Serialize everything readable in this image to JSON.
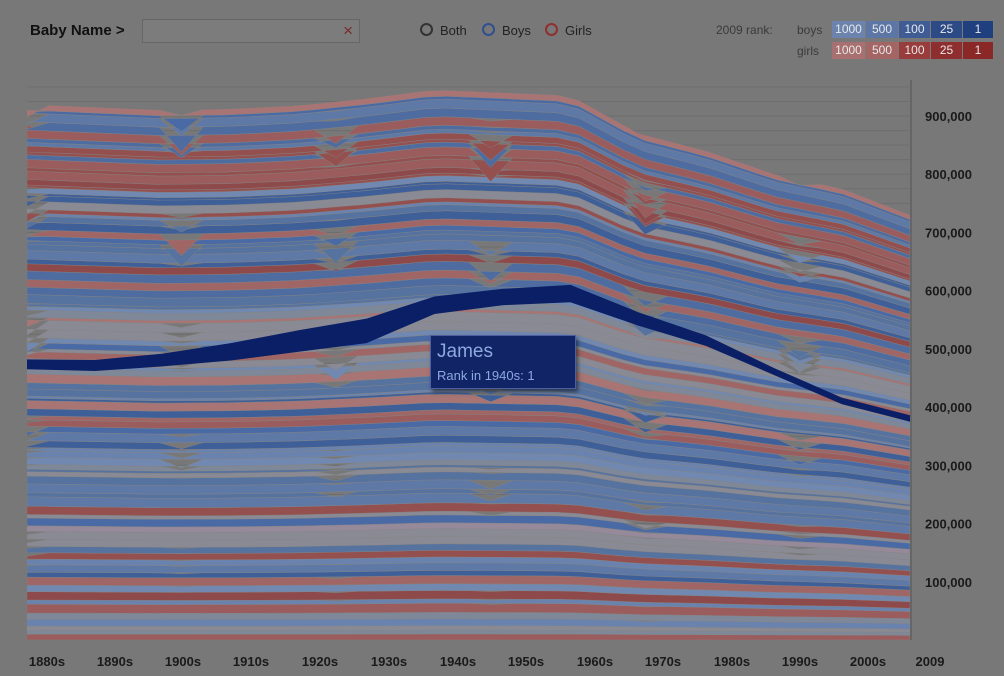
{
  "toolbar": {
    "name_label": "Baby Name >",
    "search_value": "",
    "search_placeholder": "",
    "clear_glyph": "×",
    "filters": [
      "Both",
      "Boys",
      "Girls"
    ],
    "filter_colors": [
      "#333333",
      "#2f4f8f",
      "#8f2f2f"
    ]
  },
  "legend": {
    "title": "2009 rank:",
    "boys_label": "boys",
    "girls_label": "girls",
    "ranks": [
      "1000",
      "500",
      "100",
      "25",
      "1"
    ],
    "boys_colors": [
      "#6b83ad",
      "#5c76a6",
      "#3f5c94",
      "#2c4b86",
      "#1f3f7f"
    ],
    "girls_colors": [
      "#a87070",
      "#a46565",
      "#983c3c",
      "#8f2e2e",
      "#8a2727"
    ]
  },
  "tooltip": {
    "name": "James",
    "rank_text": "Rank in 1940s: 1"
  },
  "chart_data": {
    "type": "area",
    "x": [
      "1880s",
      "1890s",
      "1900s",
      "1910s",
      "1920s",
      "1930s",
      "1940s",
      "1950s",
      "1960s",
      "1970s",
      "1980s",
      "1990s",
      "2000s",
      "2009"
    ],
    "y_ticks": [
      "100,000",
      "200,000",
      "300,000",
      "400,000",
      "500,000",
      "600,000",
      "700,000",
      "800,000",
      "900,000"
    ],
    "y_tick_values": [
      100000,
      200000,
      300000,
      400000,
      500000,
      600000,
      700000,
      800000,
      900000
    ],
    "ylim": [
      0,
      955000
    ],
    "total": [
      920000,
      915000,
      910000,
      912000,
      918000,
      930000,
      945000,
      940000,
      935000,
      870000,
      840000,
      800000,
      775000,
      730000
    ],
    "highlight": {
      "name": "James",
      "lower": [
        465000,
        462000,
        470000,
        480000,
        495000,
        510000,
        560000,
        575000,
        580000,
        540000,
        505000,
        455000,
        405000,
        375000
      ],
      "upper": [
        482000,
        481000,
        492000,
        510000,
        532000,
        552000,
        590000,
        603000,
        610000,
        563000,
        523000,
        467000,
        416000,
        386000
      ],
      "color": "#0a1f66"
    }
  }
}
